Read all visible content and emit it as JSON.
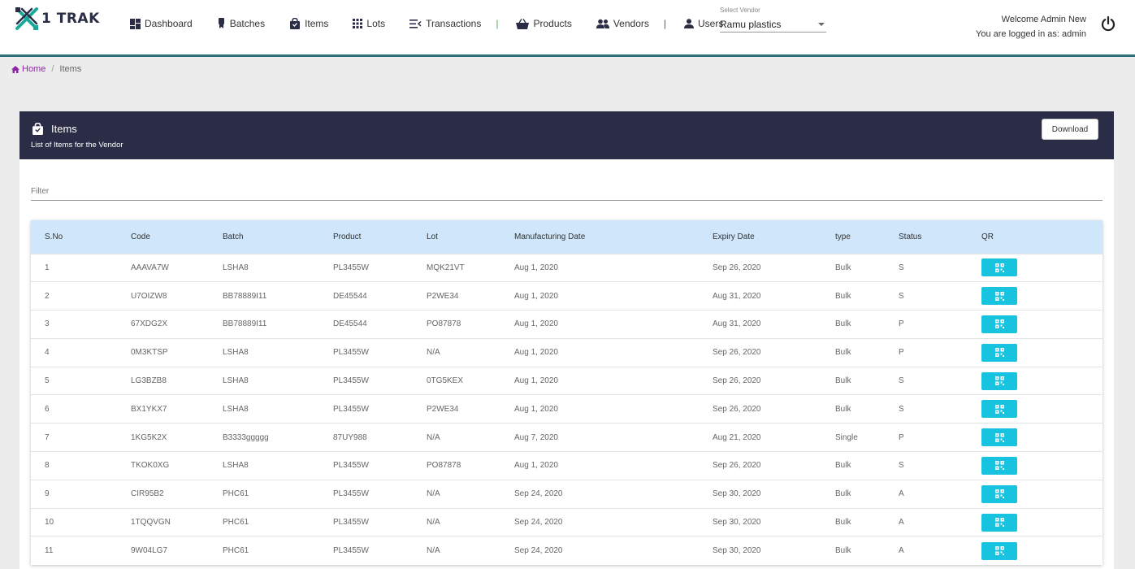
{
  "app": {
    "logo_text": "1 TRAK"
  },
  "nav": {
    "dashboard": "Dashboard",
    "batches": "Batches",
    "items": "Items",
    "lots": "Lots",
    "transactions": "Transactions",
    "products": "Products",
    "vendors": "Vendors",
    "users": "Users",
    "separator": "|"
  },
  "vendor_select": {
    "label": "Select Vendor",
    "value": "Ramu plastics"
  },
  "user": {
    "welcome": "Welcome Admin New",
    "logged_in": "You are logged in as: admin"
  },
  "breadcrumb": {
    "home": "Home",
    "separator": "/",
    "current": "Items"
  },
  "card": {
    "title": "Items",
    "subtitle": "List of Items for the Vendor",
    "download_label": "Download",
    "filter_placeholder": "Filter"
  },
  "table": {
    "columns": [
      "S.No",
      "Code",
      "Batch",
      "Product",
      "Lot",
      "Manufacturing Date",
      "Expiry Date",
      "type",
      "Status",
      "QR"
    ],
    "rows": [
      [
        "1",
        "AAAVA7W",
        "LSHA8",
        "PL3455W",
        "MQK21VT",
        "Aug 1, 2020",
        "Sep 26, 2020",
        "Bulk",
        "S"
      ],
      [
        "2",
        "U7OIZW8",
        "BB78889I11",
        "DE45544",
        "P2WE34",
        "Aug 1, 2020",
        "Aug 31, 2020",
        "Bulk",
        "S"
      ],
      [
        "3",
        "67XDG2X",
        "BB78889I11",
        "DE45544",
        "PO87878",
        "Aug 1, 2020",
        "Aug 31, 2020",
        "Bulk",
        "P"
      ],
      [
        "4",
        "0M3KTSP",
        "LSHA8",
        "PL3455W",
        "N/A",
        "Aug 1, 2020",
        "Sep 26, 2020",
        "Bulk",
        "P"
      ],
      [
        "5",
        "LG3BZB8",
        "LSHA8",
        "PL3455W",
        "0TG5KEX",
        "Aug 1, 2020",
        "Sep 26, 2020",
        "Bulk",
        "S"
      ],
      [
        "6",
        "BX1YKX7",
        "LSHA8",
        "PL3455W",
        "P2WE34",
        "Aug 1, 2020",
        "Sep 26, 2020",
        "Bulk",
        "S"
      ],
      [
        "7",
        "1KG5K2X",
        "B3333ggggg",
        "87UY988",
        "N/A",
        "Aug 7, 2020",
        "Aug 21, 2020",
        "Single",
        "P"
      ],
      [
        "8",
        "TKOK0XG",
        "LSHA8",
        "PL3455W",
        "PO87878",
        "Aug 1, 2020",
        "Sep 26, 2020",
        "Bulk",
        "S"
      ],
      [
        "9",
        "CIR95B2",
        "PHC61",
        "PL3455W",
        "N/A",
        "Sep 24, 2020",
        "Sep 30, 2020",
        "Bulk",
        "A"
      ],
      [
        "10",
        "1TQQVGN",
        "PHC61",
        "PL3455W",
        "N/A",
        "Sep 24, 2020",
        "Sep 30, 2020",
        "Bulk",
        "A"
      ],
      [
        "11",
        "9W04LG7",
        "PHC61",
        "PL3455W",
        "N/A",
        "Sep 24, 2020",
        "Sep 30, 2020",
        "Bulk",
        "A"
      ]
    ]
  },
  "colors": {
    "header_dark": "#2b2d46",
    "table_head": "#cfe6fb",
    "qr_button": "#18c3e0",
    "home_link": "#8e24aa",
    "accent_line": "#2f6f77"
  }
}
